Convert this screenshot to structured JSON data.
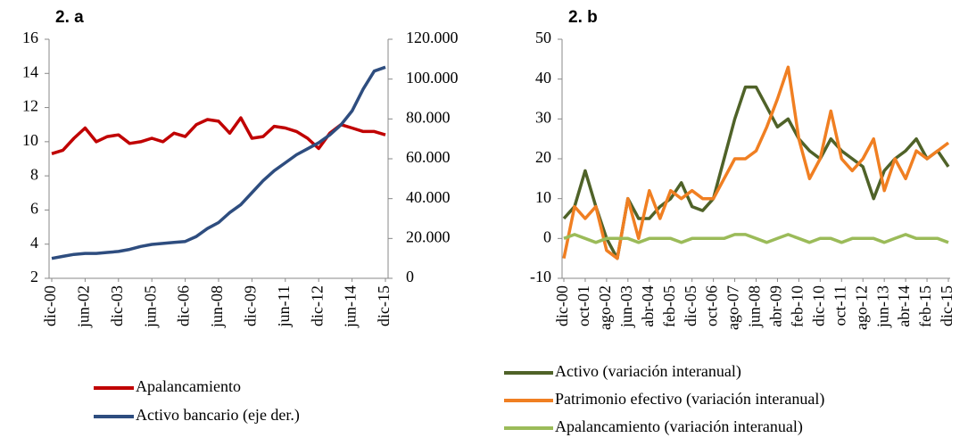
{
  "chart_data": [
    {
      "type": "line",
      "title": "2. a",
      "categories": [
        "dic-00",
        null,
        null,
        "jun-02",
        null,
        null,
        "dic-03",
        null,
        null,
        "jun-05",
        null,
        null,
        "dic-06",
        null,
        null,
        "jun-08",
        null,
        null,
        "dic-09",
        null,
        null,
        "jun-11",
        null,
        null,
        "dic-12",
        null,
        null,
        "jun-14",
        null,
        null,
        "dic-15"
      ],
      "ylim": [
        2,
        16
      ],
      "yticks": [
        2,
        4,
        6,
        8,
        10,
        12,
        14,
        16
      ],
      "y2lim": [
        0,
        120000
      ],
      "y2ticks": [
        0,
        {
          "value": 20000,
          "label": "20.000"
        },
        {
          "value": 40000,
          "label": "40.000"
        },
        {
          "value": 60000,
          "label": "60.000"
        },
        {
          "value": 80000,
          "label": "80.000"
        },
        {
          "value": 100000,
          "label": "100.000"
        },
        {
          "value": 120000,
          "label": "120.000"
        }
      ],
      "series": [
        {
          "name": "Apalancamiento",
          "color": "#c00000",
          "values": [
            9.3,
            9.5,
            10.2,
            10.8,
            10.0,
            10.3,
            10.4,
            9.9,
            10.0,
            10.2,
            10.0,
            10.5,
            10.3,
            11.0,
            11.3,
            11.2,
            10.5,
            11.4,
            10.2,
            10.3,
            10.9,
            10.8,
            10.6,
            10.2,
            9.6,
            10.5,
            11.0,
            10.8,
            10.6,
            10.6,
            10.4
          ]
        },
        {
          "name": "Activo bancario (eje der.)",
          "color": "#2e4d7f",
          "axis": "y2",
          "values": [
            10000,
            11000,
            12000,
            12500,
            12500,
            13000,
            13500,
            14500,
            16000,
            17000,
            17500,
            18000,
            18500,
            21000,
            25000,
            28000,
            33000,
            37000,
            43000,
            49000,
            54000,
            58000,
            62000,
            65000,
            68000,
            72000,
            77000,
            84000,
            95000,
            104000,
            106000
          ]
        }
      ]
    },
    {
      "type": "line",
      "title": "2. b",
      "categories": [
        "dic-00",
        null,
        "oct-01",
        null,
        "ago-02",
        null,
        "jun-03",
        null,
        "abr-04",
        null,
        "feb-05",
        null,
        "dic-05",
        null,
        "oct-06",
        null,
        "ago-07",
        null,
        "jun-08",
        null,
        "abr-09",
        null,
        "feb-10",
        null,
        "dic-10",
        null,
        "oct-11",
        null,
        "ago-12",
        null,
        "jun-13",
        null,
        "abr-14",
        null,
        "feb-15",
        null,
        "dic-15"
      ],
      "ylim": [
        -10,
        50
      ],
      "yticks": [
        -10,
        0,
        10,
        20,
        30,
        40,
        50
      ],
      "series": [
        {
          "name": "Activo (variación interanual)",
          "color": "#4f6228",
          "values": [
            5,
            8,
            17,
            8,
            0,
            -5,
            10,
            5,
            5,
            8,
            10,
            14,
            8,
            7,
            10,
            20,
            30,
            38,
            38,
            33,
            28,
            30,
            25,
            22,
            20,
            25,
            22,
            20,
            18,
            10,
            17,
            20,
            22,
            25,
            20,
            22,
            18
          ]
        },
        {
          "name": "Patrimonio efectivo (variación interanual)",
          "color": "#f07f22",
          "values": [
            -5,
            8,
            5,
            8,
            -3,
            -5,
            10,
            0,
            12,
            5,
            12,
            10,
            12,
            10,
            10,
            15,
            20,
            20,
            22,
            28,
            35,
            43,
            25,
            15,
            20,
            32,
            20,
            17,
            20,
            25,
            12,
            20,
            15,
            22,
            20,
            22,
            24
          ]
        },
        {
          "name": "Apalancamiento (variación interanual)",
          "color": "#9bbb59",
          "values": [
            0,
            1,
            0,
            -1,
            0,
            0,
            0,
            -1,
            0,
            0,
            0,
            -1,
            0,
            0,
            0,
            0,
            1,
            1,
            0,
            -1,
            0,
            1,
            0,
            -1,
            0,
            0,
            -1,
            0,
            0,
            0,
            -1,
            0,
            1,
            0,
            0,
            0,
            -1
          ]
        }
      ]
    }
  ]
}
